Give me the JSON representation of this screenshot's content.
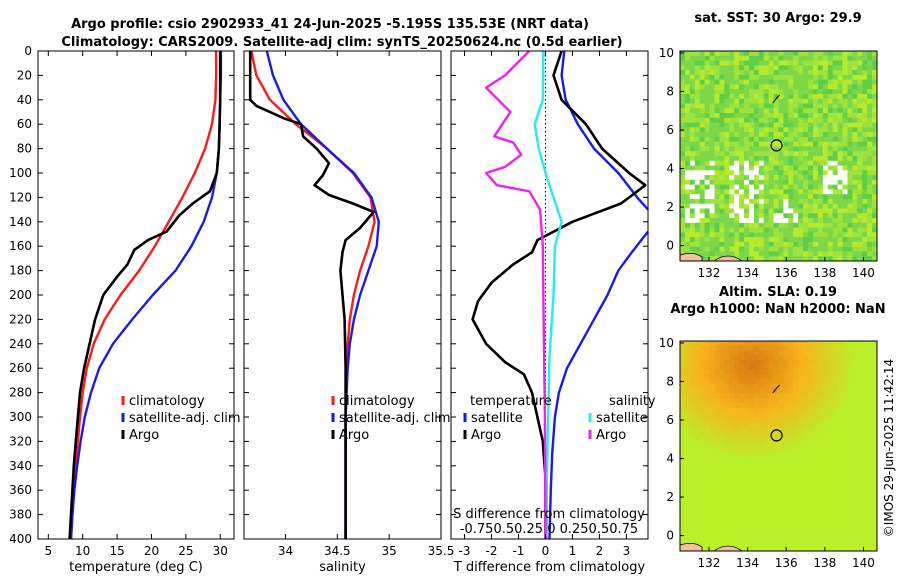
{
  "header": {
    "title_line1": "Argo profile: csio 2902933_41 24-Jun-2025 -5.195S 135.53E (NRT data)",
    "title_line2": "Climatology: CARS2009. Satellite-adj clim: synTS_20250624.nc (0.5d earlier)"
  },
  "colors": {
    "climatology": "#ff1a1a",
    "satellite": "#1a1aee",
    "argo": "#000000",
    "temp_diff": "#ee22ee",
    "sal_diff": "#22eeee",
    "sla_bg": "#f2b21e"
  },
  "watermark": "©IMOS 29-Jun-2025 11:42:14",
  "chart_data": [
    {
      "id": "temperature",
      "type": "line",
      "xlabel": "temperature (deg C)",
      "ylabel": "",
      "xlim": [
        3.5,
        32
      ],
      "ylim": [
        400,
        0
      ],
      "xticks": [
        5,
        10,
        15,
        20,
        25,
        30
      ],
      "xtick_labels": [
        "5",
        "10",
        "15",
        "20",
        "25",
        "30"
      ],
      "yticks": [
        0,
        20,
        40,
        60,
        80,
        100,
        120,
        140,
        160,
        180,
        200,
        220,
        240,
        260,
        280,
        300,
        320,
        340,
        360,
        380,
        400
      ],
      "legend": {
        "position": "bottom-right",
        "entries": [
          "climatology",
          "satellite-adj. clim",
          "Argo"
        ]
      },
      "series": [
        {
          "name": "climatology",
          "color_key": "climatology",
          "points": [
            [
              29.4,
              0
            ],
            [
              29.4,
              20
            ],
            [
              29.3,
              40
            ],
            [
              28.8,
              60
            ],
            [
              27.8,
              80
            ],
            [
              26.3,
              100
            ],
            [
              24.5,
              120
            ],
            [
              22.5,
              140
            ],
            [
              20.5,
              160
            ],
            [
              18.2,
              180
            ],
            [
              15.5,
              200
            ],
            [
              13.2,
              220
            ],
            [
              11.6,
              240
            ],
            [
              10.6,
              260
            ],
            [
              10.0,
              280
            ],
            [
              9.6,
              300
            ],
            [
              9.3,
              320
            ],
            [
              9.0,
              340
            ],
            [
              8.7,
              360
            ],
            [
              8.5,
              380
            ],
            [
              8.3,
              400
            ]
          ]
        },
        {
          "name": "satellite-adj. clim",
          "color_key": "satellite",
          "points": [
            [
              30.1,
              0
            ],
            [
              30.1,
              20
            ],
            [
              30.0,
              40
            ],
            [
              29.9,
              60
            ],
            [
              29.8,
              80
            ],
            [
              29.5,
              100
            ],
            [
              28.8,
              120
            ],
            [
              27.6,
              140
            ],
            [
              25.8,
              160
            ],
            [
              23.5,
              180
            ],
            [
              20.2,
              200
            ],
            [
              17.2,
              220
            ],
            [
              14.4,
              240
            ],
            [
              12.4,
              260
            ],
            [
              11.2,
              280
            ],
            [
              10.3,
              300
            ],
            [
              9.7,
              320
            ],
            [
              9.2,
              340
            ],
            [
              8.8,
              360
            ],
            [
              8.5,
              380
            ],
            [
              8.3,
              400
            ]
          ]
        },
        {
          "name": "Argo",
          "color_key": "argo",
          "points": [
            [
              30.0,
              0
            ],
            [
              30.0,
              20
            ],
            [
              30.0,
              40
            ],
            [
              29.9,
              60
            ],
            [
              29.8,
              80
            ],
            [
              29.5,
              100
            ],
            [
              28.5,
              115
            ],
            [
              26.0,
              125
            ],
            [
              24.0,
              135
            ],
            [
              22.2,
              148
            ],
            [
              19.5,
              155
            ],
            [
              17.5,
              163
            ],
            [
              16.5,
              175
            ],
            [
              15.0,
              185
            ],
            [
              13.0,
              200
            ],
            [
              11.8,
              220
            ],
            [
              11.0,
              240
            ],
            [
              10.2,
              260
            ],
            [
              9.6,
              280
            ],
            [
              9.3,
              300
            ],
            [
              9.0,
              320
            ],
            [
              8.7,
              340
            ],
            [
              8.5,
              360
            ],
            [
              8.3,
              380
            ],
            [
              8.1,
              400
            ]
          ]
        }
      ]
    },
    {
      "id": "salinity",
      "type": "line",
      "xlabel": "salinity",
      "ylabel": "",
      "xlim": [
        33.6,
        35.5
      ],
      "ylim": [
        400,
        0
      ],
      "xticks": [
        34,
        34.5,
        35,
        35.5
      ],
      "xtick_labels": [
        "34",
        "34.5",
        "35",
        "35.5"
      ],
      "legend": {
        "position": "bottom-right",
        "entries": [
          "climatology",
          "satellite-adj. clim",
          "Argo"
        ]
      },
      "series": [
        {
          "name": "climatology",
          "color_key": "climatology",
          "points": [
            [
              33.67,
              0
            ],
            [
              33.72,
              20
            ],
            [
              33.85,
              40
            ],
            [
              34.1,
              60
            ],
            [
              34.4,
              80
            ],
            [
              34.65,
              100
            ],
            [
              34.82,
              120
            ],
            [
              34.86,
              140
            ],
            [
              34.8,
              160
            ],
            [
              34.72,
              180
            ],
            [
              34.66,
              200
            ],
            [
              34.62,
              220
            ],
            [
              34.6,
              240
            ],
            [
              34.59,
              260
            ],
            [
              34.58,
              300
            ],
            [
              34.58,
              400
            ]
          ]
        },
        {
          "name": "satellite-adj. clim",
          "color_key": "satellite",
          "points": [
            [
              33.82,
              0
            ],
            [
              33.88,
              20
            ],
            [
              33.98,
              40
            ],
            [
              34.15,
              60
            ],
            [
              34.4,
              80
            ],
            [
              34.66,
              100
            ],
            [
              34.83,
              120
            ],
            [
              34.9,
              140
            ],
            [
              34.88,
              160
            ],
            [
              34.8,
              180
            ],
            [
              34.72,
              200
            ],
            [
              34.66,
              220
            ],
            [
              34.62,
              240
            ],
            [
              34.6,
              260
            ],
            [
              34.58,
              300
            ],
            [
              34.58,
              400
            ]
          ]
        },
        {
          "name": "Argo",
          "color_key": "argo",
          "points": [
            [
              33.66,
              0
            ],
            [
              33.66,
              20
            ],
            [
              33.66,
              40
            ],
            [
              33.72,
              45
            ],
            [
              33.98,
              55
            ],
            [
              34.15,
              60
            ],
            [
              34.17,
              70
            ],
            [
              34.3,
              80
            ],
            [
              34.42,
              92
            ],
            [
              34.36,
              102
            ],
            [
              34.28,
              110
            ],
            [
              34.42,
              118
            ],
            [
              34.65,
              125
            ],
            [
              34.85,
              132
            ],
            [
              34.72,
              145
            ],
            [
              34.58,
              155
            ],
            [
              34.55,
              165
            ],
            [
              34.53,
              180
            ],
            [
              34.55,
              200
            ],
            [
              34.57,
              220
            ],
            [
              34.58,
              260
            ],
            [
              34.58,
              300
            ],
            [
              34.58,
              400
            ]
          ]
        }
      ]
    },
    {
      "id": "difference",
      "type": "line",
      "xlabel": "T difference from climatology",
      "xlabel2": "S difference from climatology",
      "ylabel": "",
      "xlim": [
        -3.5,
        3.8
      ],
      "ylim": [
        400,
        0
      ],
      "xticks": [
        -3,
        -2,
        -1,
        0,
        1,
        2,
        3
      ],
      "xtick_labels": [
        "-3",
        "-2",
        "-1",
        "0",
        "1",
        "2",
        "3"
      ],
      "s_axis_label": "-0.750.50.25 0 0.250.50.75",
      "legend": {
        "position": "bottom-right",
        "temperature_title": "temperature",
        "salinity_title": "salinity",
        "temp_entries": [
          "satellite",
          "Argo"
        ],
        "sal_entries": [
          "satellite",
          "Argo"
        ]
      },
      "series": [
        {
          "name": "T satellite",
          "color_key": "satellite",
          "points": [
            [
              0.7,
              0
            ],
            [
              0.6,
              20
            ],
            [
              0.75,
              40
            ],
            [
              1.2,
              60
            ],
            [
              1.8,
              80
            ],
            [
              2.7,
              100
            ],
            [
              3.4,
              120
            ],
            [
              3.8,
              130
            ]
          ],
          "extra": [
            [
              3.8,
              148
            ],
            [
              3.2,
              165
            ],
            [
              2.7,
              180
            ],
            [
              2.3,
              200
            ],
            [
              1.8,
              220
            ],
            [
              1.3,
              240
            ],
            [
              0.8,
              260
            ],
            [
              0.5,
              280
            ],
            [
              0.35,
              300
            ],
            [
              0.25,
              330
            ],
            [
              0.2,
              360
            ],
            [
              0.15,
              400
            ]
          ]
        },
        {
          "name": "T Argo",
          "color_key": "argo",
          "points": [
            [
              0.6,
              0
            ],
            [
              0.3,
              20
            ],
            [
              0.6,
              40
            ],
            [
              1.5,
              60
            ],
            [
              2.1,
              80
            ],
            [
              3.1,
              100
            ],
            [
              3.7,
              110
            ],
            [
              2.8,
              125
            ],
            [
              1.0,
              140
            ],
            [
              -0.3,
              155
            ],
            [
              -0.5,
              165
            ],
            [
              -1.2,
              175
            ],
            [
              -2.0,
              190
            ],
            [
              -2.5,
              205
            ],
            [
              -2.7,
              220
            ],
            [
              -2.2,
              240
            ],
            [
              -1.5,
              255
            ],
            [
              -0.8,
              265
            ],
            [
              -0.5,
              280
            ],
            [
              -0.3,
              300
            ],
            [
              -0.1,
              320
            ],
            [
              0.0,
              350
            ],
            [
              0.0,
              400
            ]
          ]
        },
        {
          "name": "S satellite",
          "color_key": "sal_diff",
          "points": [
            [
              -0.08,
              0
            ],
            [
              -0.1,
              40
            ],
            [
              -0.4,
              60
            ],
            [
              -0.25,
              80
            ],
            [
              0.0,
              100
            ],
            [
              0.3,
              120
            ],
            [
              0.6,
              140
            ],
            [
              0.35,
              160
            ],
            [
              0.3,
              200
            ],
            [
              0.15,
              250
            ],
            [
              0.1,
              300
            ],
            [
              0.05,
              350
            ],
            [
              0.05,
              400
            ]
          ]
        },
        {
          "name": "S Argo",
          "color_key": "temp_diff",
          "points": [
            [
              -0.6,
              0
            ],
            [
              -1.5,
              20
            ],
            [
              -2.2,
              30
            ],
            [
              -1.3,
              50
            ],
            [
              -1.6,
              60
            ],
            [
              -1.9,
              70
            ],
            [
              -1.2,
              75
            ],
            [
              -0.9,
              85
            ],
            [
              -1.5,
              95
            ],
            [
              -2.2,
              100
            ],
            [
              -1.8,
              110
            ],
            [
              -0.6,
              115
            ],
            [
              -0.2,
              130
            ],
            [
              -0.1,
              160
            ],
            [
              -0.08,
              200
            ],
            [
              -0.05,
              250
            ],
            [
              -0.02,
              300
            ],
            [
              0.0,
              400
            ]
          ]
        }
      ]
    },
    {
      "id": "sst_map",
      "type": "heatmap",
      "title": "sat. SST: 30 Argo: 29.9",
      "xlim": [
        130.5,
        140.7
      ],
      "ylim": [
        -0.8,
        10.1
      ],
      "xticks": [
        132,
        134,
        136,
        138,
        140
      ],
      "xtick_labels": [
        "132",
        "134",
        "136",
        "138",
        "140"
      ],
      "yticks": [
        0,
        2,
        4,
        6,
        8,
        10
      ],
      "ytick_labels": [
        "0",
        "2",
        "4",
        "6",
        "8",
        "10"
      ],
      "marker": {
        "lon": 135.5,
        "lat": 5.2
      }
    },
    {
      "id": "sla_map",
      "type": "heatmap",
      "title": "Altim. SLA: 0.19",
      "subtitle": "Argo h1000: NaN h2000: NaN",
      "xlim": [
        130.5,
        140.7
      ],
      "ylim": [
        -0.8,
        10.1
      ],
      "xticks": [
        132,
        134,
        136,
        138,
        140
      ],
      "xtick_labels": [
        "132",
        "134",
        "136",
        "138",
        "140"
      ],
      "yticks": [
        0,
        2,
        4,
        6,
        8,
        10
      ],
      "ytick_labels": [
        "0",
        "2",
        "4",
        "6",
        "8",
        "10"
      ],
      "marker": {
        "lon": 135.5,
        "lat": 5.2
      }
    }
  ]
}
